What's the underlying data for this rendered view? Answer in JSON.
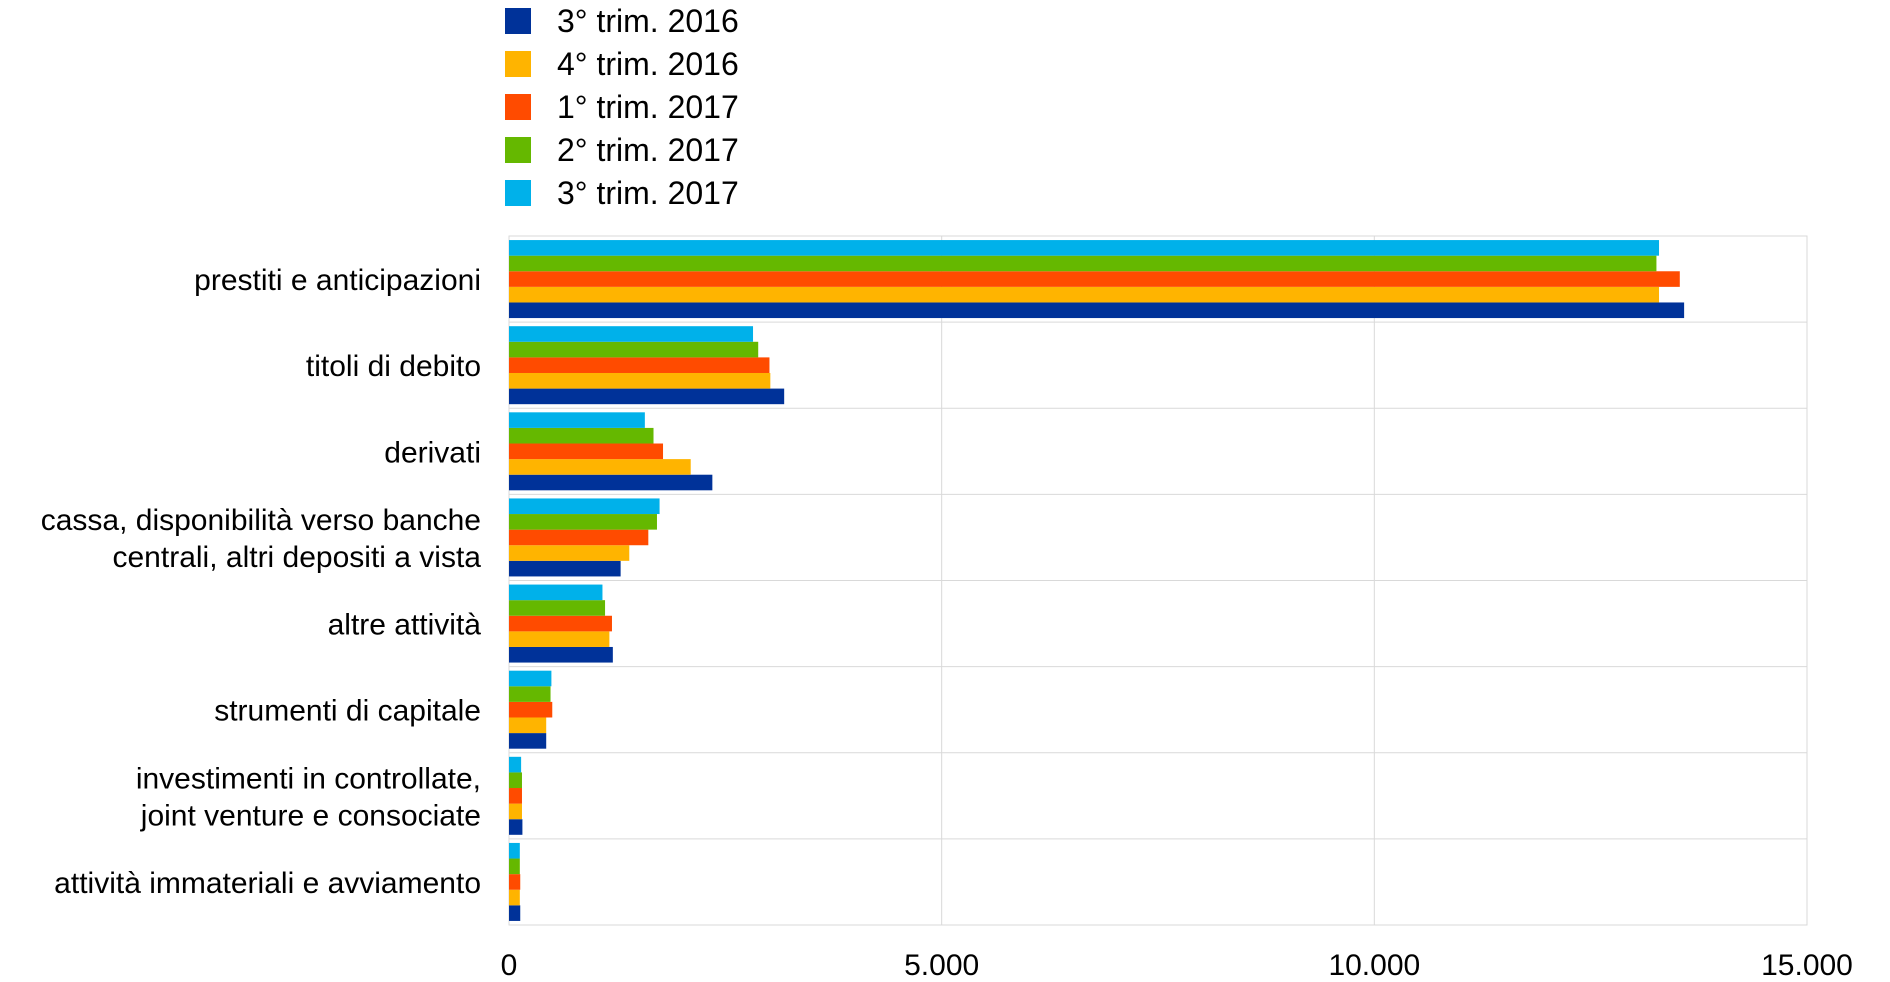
{
  "chart_data": {
    "type": "bar",
    "orientation": "horizontal",
    "categories": [
      [
        "prestiti e anticipazioni"
      ],
      [
        "titoli di debito"
      ],
      [
        "derivati"
      ],
      [
        "cassa, disponibilità verso banche",
        "centrali, altri depositi a vista"
      ],
      [
        "altre attività"
      ],
      [
        "strumenti di capitale"
      ],
      [
        "investimenti in controllate,",
        "joint venture e consociate"
      ],
      [
        "attività immateriali e avviamento"
      ]
    ],
    "series": [
      {
        "name": "3° trim. 2016",
        "color": "#003299",
        "values": [
          13580,
          3180,
          2350,
          1290,
          1200,
          430,
          155,
          130
        ]
      },
      {
        "name": "4° trim. 2016",
        "color": "#FFB400",
        "values": [
          13290,
          3020,
          2100,
          1390,
          1160,
          430,
          150,
          125
        ]
      },
      {
        "name": "1° trim. 2017",
        "color": "#FF4B00",
        "values": [
          13530,
          3010,
          1780,
          1610,
          1190,
          500,
          150,
          130
        ]
      },
      {
        "name": "2° trim. 2017",
        "color": "#65B800",
        "values": [
          13260,
          2880,
          1670,
          1710,
          1110,
          480,
          150,
          125
        ]
      },
      {
        "name": "3° trim. 2017",
        "color": "#00B1EA",
        "values": [
          13290,
          2820,
          1570,
          1740,
          1080,
          490,
          140,
          125
        ]
      }
    ],
    "xlim": [
      0,
      15000
    ],
    "xticks": [
      0,
      5000,
      10000,
      15000
    ],
    "xtick_labels": [
      "0",
      "5.000",
      "10.000",
      "15.000"
    ],
    "grid": true,
    "legend_position": "top"
  }
}
